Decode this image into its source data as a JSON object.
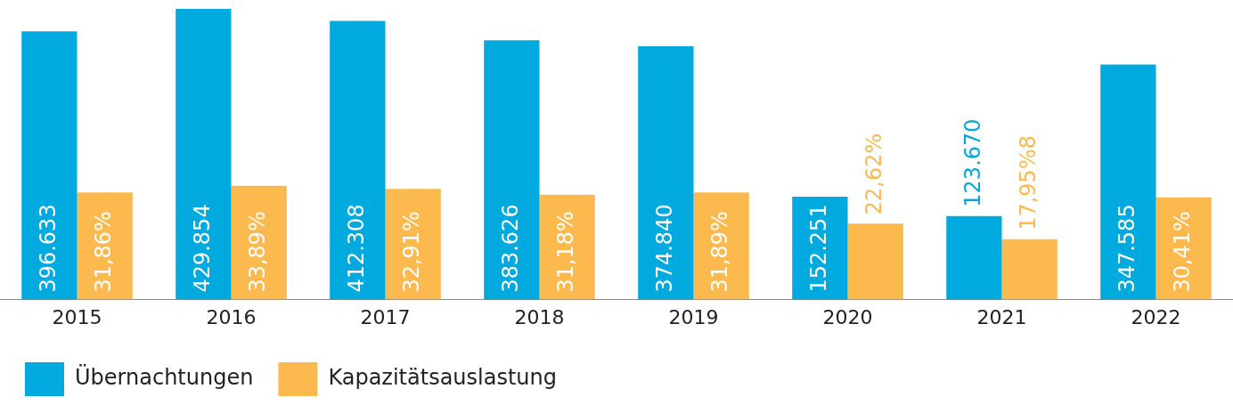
{
  "chart_data": {
    "type": "bar",
    "categories": [
      "2015",
      "2016",
      "2017",
      "2018",
      "2019",
      "2020",
      "2021",
      "2022"
    ],
    "series": [
      {
        "name": "Übernachtungen",
        "color": "#00a9de",
        "values": [
          396633,
          429854,
          412308,
          383626,
          374840,
          152251,
          123670,
          347585
        ],
        "value_labels": [
          "396.633",
          "429.854",
          "412.308",
          "383.626",
          "374.840",
          "152.251",
          "123.670",
          "347.585"
        ]
      },
      {
        "name": "Kapazitätsauslastung",
        "color": "#fbb94e",
        "axis": "y2",
        "values": [
          31.86,
          33.89,
          32.91,
          31.18,
          31.89,
          22.62,
          17.95,
          30.41
        ],
        "value_labels": [
          "31,86%",
          "33,89%",
          "32,91%",
          "31,18%",
          "31,89%",
          "22,62%",
          "17,95%8",
          "30,41%"
        ]
      }
    ],
    "ylim": [
      0,
      430000
    ],
    "y2lim": [
      0,
      86.5
    ],
    "tick_labels": "x",
    "grid": false,
    "legend": "bottom left"
  }
}
